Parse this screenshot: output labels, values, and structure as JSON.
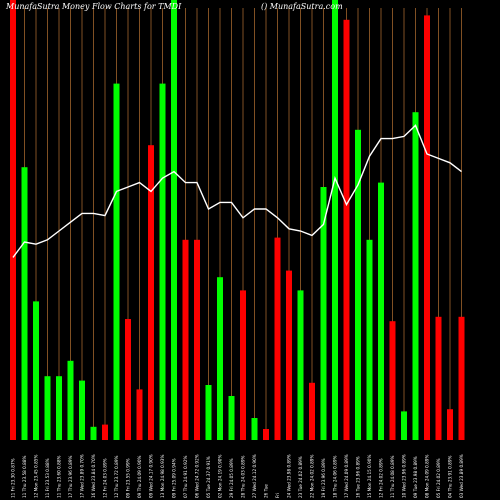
{
  "chart_data": {
    "type": "bar",
    "title": "MunafaSutra  Money Flow  Charts for TMDI",
    "watermark": "() MunafaSutra.com",
    "ylim": [
      0,
      100
    ],
    "colors": {
      "up": "#00ff00",
      "down": "#ff0000",
      "line": "#ffffff",
      "grid": "#b87333",
      "background": "#000000"
    },
    "bars": [
      {
        "label": "11 Fri 23.30 0.87%",
        "color": "down",
        "value": 100
      },
      {
        "label": "11 Thu 23.58 0.88%",
        "color": "up",
        "value": 62
      },
      {
        "label": "12 Mon 23.45 0.85%",
        "color": "up",
        "value": 31.5
      },
      {
        "label": "11 Fri 23.53 0.88%",
        "color": "up",
        "value": 14.5
      },
      {
        "label": "11 Thu 23.60 0.88%",
        "color": "up",
        "value": 14.5
      },
      {
        "label": "17 Thu 23.96 0.89%",
        "color": "up",
        "value": 18
      },
      {
        "label": "17 Wed 23.89 0.70%",
        "color": "up",
        "value": 13.5
      },
      {
        "label": "16 Wed 23.84 0.70%",
        "color": "up",
        "value": 3
      },
      {
        "label": "12 Fri 24.03 0.89%",
        "color": "down",
        "value": 3.5
      },
      {
        "label": "12 Thu 23.72 0.89%",
        "color": "up",
        "value": 81
      },
      {
        "label": "09 Fri 23.55 0.99%",
        "color": "down",
        "value": 27.5
      },
      {
        "label": "09 Thu 24.09 0.90%",
        "color": "down",
        "value": 11.5
      },
      {
        "label": "09 Wed 24.17 0.90%",
        "color": "down",
        "value": 67
      },
      {
        "label": "13 Mon 24.98 0.93%",
        "color": "up",
        "value": 81
      },
      {
        "label": "09 Fri 25.09 0.94%",
        "color": "up",
        "value": 100
      },
      {
        "label": "07 Thu 24.91 0.92%",
        "color": "down",
        "value": 45.5
      },
      {
        "label": "06 Wed 24.72 0.92%",
        "color": "down",
        "value": 45.5
      },
      {
        "label": "05 Tue 24.37 0.91%",
        "color": "up",
        "value": 12.5
      },
      {
        "label": "02 Mon 24.19 0.90%",
        "color": "up",
        "value": 37
      },
      {
        "label": "29 Fri 24.05 0.89%",
        "color": "up",
        "value": 10
      },
      {
        "label": "28 Thu 24.03 0.89%",
        "color": "down",
        "value": 34
      },
      {
        "label": "27 Wed 24.12 0.90%",
        "color": "up",
        "value": 5
      },
      {
        "label": "26 Tue",
        "color": "down",
        "value": 2.5
      },
      {
        "label": "Fri",
        "color": "down",
        "value": 46
      },
      {
        "label": "24 Wed 23.98 0.89%",
        "color": "down",
        "value": 38.5
      },
      {
        "label": "23 Tue 24.02 0.89%",
        "color": "up",
        "value": 34
      },
      {
        "label": "22 Mon 24.02 0.89%",
        "color": "down",
        "value": 13
      },
      {
        "label": "19 Fri 23.96 0.89%",
        "color": "up",
        "value": 57.5
      },
      {
        "label": "18 Thu 24.06 0.89%",
        "color": "up",
        "value": 100
      },
      {
        "label": "17 Wed 24.09 0.89%",
        "color": "down",
        "value": 95.5
      },
      {
        "label": "16 Tue 23.96 0.89%",
        "color": "up",
        "value": 70.5
      },
      {
        "label": "15 Mon 24.15 0.90%",
        "color": "up",
        "value": 45.5
      },
      {
        "label": "12 Fri 24.02 0.89%",
        "color": "up",
        "value": 58.5
      },
      {
        "label": "11 Thu 24.08 0.89%",
        "color": "down",
        "value": 27
      },
      {
        "label": "10 Wed 23.96 0.89%",
        "color": "up",
        "value": 6.5
      },
      {
        "label": "09 Tue 23.98 0.89%",
        "color": "up",
        "value": 74.5
      },
      {
        "label": "08 Mon 24.09 0.89%",
        "color": "down",
        "value": 96.5
      },
      {
        "label": "05 Fri 24.02 0.89%",
        "color": "down",
        "value": 28
      },
      {
        "label": "04 Thu 23.91 0.89%",
        "color": "down",
        "value": 7
      },
      {
        "label": "03 Wed 23.89 0.89%",
        "color": "down",
        "value": 28
      }
    ],
    "line": [
      41.5,
      45,
      44.5,
      45.5,
      47.5,
      49.5,
      51.5,
      51.5,
      51,
      56.5,
      57.5,
      58.5,
      56.5,
      59.5,
      61,
      58.5,
      58.5,
      52.5,
      54,
      54,
      50.5,
      52.5,
      52.5,
      50.5,
      48,
      47.5,
      46.5,
      49,
      59.5,
      53.5,
      58,
      64.5,
      68.5,
      68.5,
      69,
      71.5,
      65,
      64,
      63,
      61
    ]
  }
}
